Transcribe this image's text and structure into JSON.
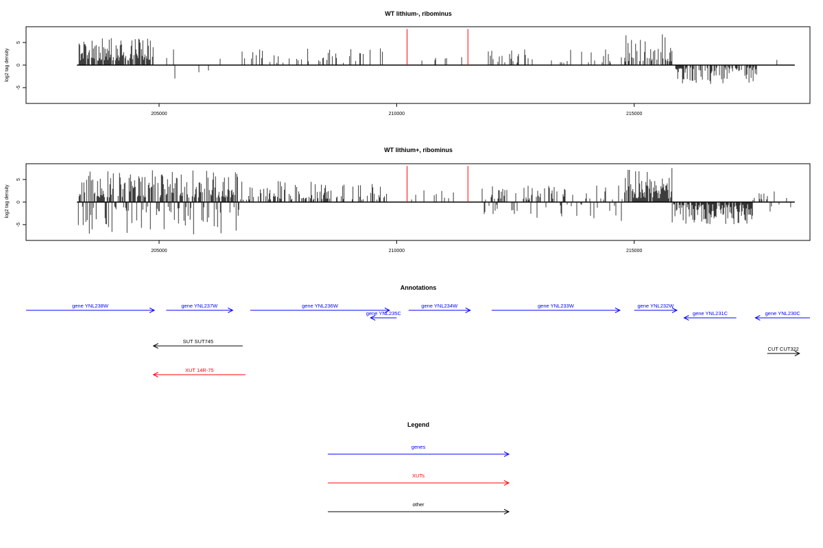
{
  "colors": {
    "gene": "#0000ff",
    "xut": "#ff0000",
    "other": "#000000",
    "marker": "#ff0000",
    "signal": "#000000"
  },
  "chart_data": [
    {
      "type": "bar",
      "title": "WT lithium-, ribominus",
      "ylabel": "log2 tag density",
      "xlim": [
        202200,
        218700
      ],
      "ylim": [
        -8.5,
        8.5
      ],
      "xticks": [
        205000,
        210000,
        215000
      ],
      "yticks": [
        -5,
        0,
        5
      ],
      "x_start": 203270,
      "x_end": 218380,
      "markers": [
        210220,
        211500
      ],
      "marker_height": 8,
      "segments": [
        {
          "from": 203300,
          "to": 204900,
          "density": 0.75,
          "min": 1.0,
          "max": 6.0,
          "neg": false
        },
        {
          "from": 204900,
          "to": 206800,
          "density": 0.05,
          "min": 0.5,
          "max": 3.5,
          "neg": "mix"
        },
        {
          "from": 206800,
          "to": 209800,
          "density": 0.17,
          "min": 0.5,
          "max": 3.8,
          "neg": false
        },
        {
          "from": 210300,
          "to": 211400,
          "density": 0.06,
          "min": 0.5,
          "max": 2.0,
          "neg": false
        },
        {
          "from": 211800,
          "to": 214800,
          "density": 0.16,
          "min": 0.5,
          "max": 3.5,
          "neg": false
        },
        {
          "from": 214800,
          "to": 215800,
          "density": 0.55,
          "min": 0.8,
          "max": 7.0,
          "neg": false
        },
        {
          "from": 215800,
          "to": 217600,
          "density": 0.55,
          "min": 0.5,
          "max": 4.2,
          "neg": true
        },
        {
          "from": 217600,
          "to": 218300,
          "density": 0.03,
          "min": 1.0,
          "max": 3.5,
          "neg": "mix"
        }
      ]
    },
    {
      "type": "bar",
      "title": "WT lithium+, ribominus",
      "ylabel": "log2 tag density",
      "xlim": [
        202200,
        218700
      ],
      "ylim": [
        -8.5,
        8.5
      ],
      "xticks": [
        205000,
        210000,
        215000
      ],
      "yticks": [
        -5,
        0,
        5
      ],
      "x_start": 203270,
      "x_end": 218380,
      "markers": [
        210220,
        211500
      ],
      "marker_height": 8,
      "segments": [
        {
          "from": 203300,
          "to": 206700,
          "density": 0.9,
          "min": 1.0,
          "max": 7.2,
          "neg": "mix"
        },
        {
          "from": 206700,
          "to": 209800,
          "density": 0.45,
          "min": 0.5,
          "max": 4.8,
          "neg": false
        },
        {
          "from": 210300,
          "to": 211400,
          "density": 0.12,
          "min": 0.5,
          "max": 2.6,
          "neg": false
        },
        {
          "from": 211800,
          "to": 214800,
          "density": 0.4,
          "min": 0.5,
          "max": 4.2,
          "neg": "mix"
        },
        {
          "from": 214800,
          "to": 215800,
          "density": 0.85,
          "min": 0.8,
          "max": 8.0,
          "neg": false
        },
        {
          "from": 215800,
          "to": 217500,
          "density": 0.85,
          "min": 0.5,
          "max": 5.0,
          "neg": true
        },
        {
          "from": 217500,
          "to": 218300,
          "density": 0.25,
          "min": 0.5,
          "max": 2.5,
          "neg": "mix"
        }
      ]
    }
  ],
  "annotations": {
    "title": "Annotations",
    "items": [
      {
        "label": "gene YNL238W",
        "kind": "gene",
        "x1": 202200,
        "x2": 204900,
        "row": 0
      },
      {
        "label": "gene YNL237W",
        "kind": "gene",
        "x1": 205150,
        "x2": 206550,
        "row": 0
      },
      {
        "label": "gene YNL236W",
        "kind": "gene",
        "x1": 206920,
        "x2": 209850,
        "row": 0
      },
      {
        "label": "gene YNL235C",
        "kind": "gene",
        "x1": 210000,
        "x2": 209450,
        "row": 1
      },
      {
        "label": "gene YNL234W",
        "kind": "gene",
        "x1": 210250,
        "x2": 211550,
        "row": 0
      },
      {
        "label": "gene YNL233W",
        "kind": "gene",
        "x1": 212000,
        "x2": 214700,
        "row": 0
      },
      {
        "label": "gene YNL232W",
        "kind": "gene",
        "x1": 215000,
        "x2": 215900,
        "row": 0
      },
      {
        "label": "gene YNL231C",
        "kind": "gene",
        "x1": 217150,
        "x2": 216050,
        "row": 1
      },
      {
        "label": "gene YNL230C",
        "kind": "gene",
        "x1": 218700,
        "x2": 217550,
        "row": 1
      },
      {
        "label": "SUT SUT745",
        "kind": "other",
        "x1": 206760,
        "x2": 204880,
        "row": 2
      },
      {
        "label": "CUT CUT322",
        "kind": "other",
        "x1": 217800,
        "x2": 218480,
        "row": 3
      },
      {
        "label": "XUT 14R-75",
        "kind": "xut",
        "x1": 206820,
        "x2": 204880,
        "row": 4
      }
    ]
  },
  "legend": {
    "title": "Legend",
    "items": [
      {
        "label": "genes",
        "kind": "gene"
      },
      {
        "label": "XUTs",
        "kind": "xut"
      },
      {
        "label": "other",
        "kind": "other"
      }
    ]
  }
}
